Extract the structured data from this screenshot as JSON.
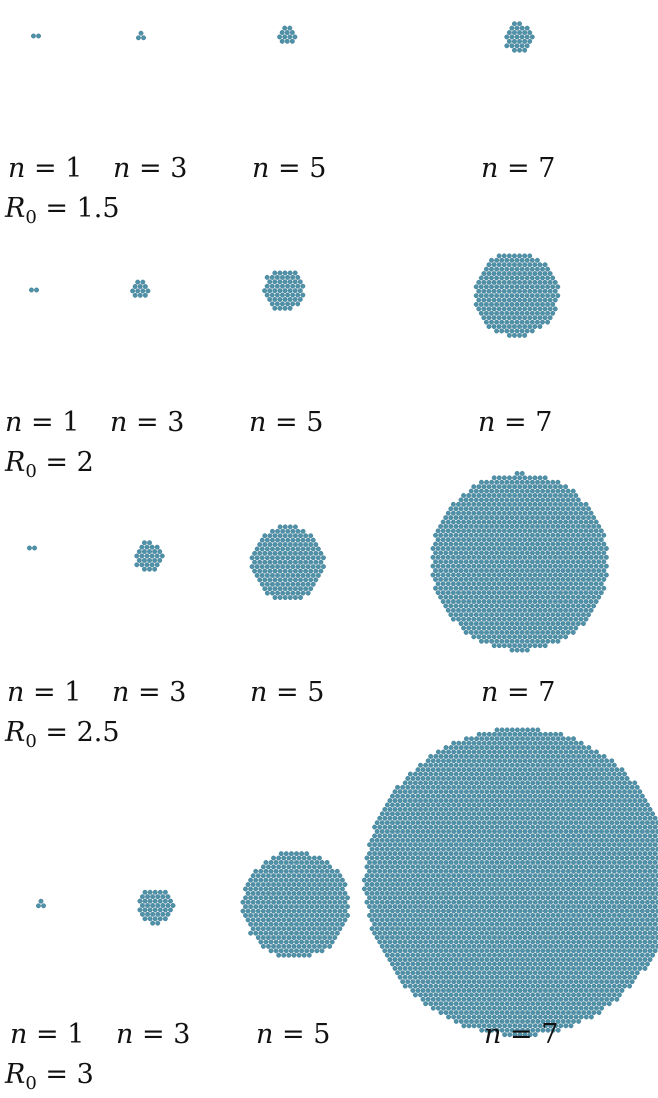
{
  "figure": {
    "dot_color": "#4f91a8",
    "dot_stroke": "#3f7d93",
    "rows": [
      {
        "r0_symbol": "R",
        "r0_subscript": "0",
        "r0_value": "1.5",
        "panels": [
          {
            "n_symbol": "n",
            "n_value": "1",
            "dots": 2
          },
          {
            "n_symbol": "n",
            "n_value": "3",
            "dots": 3
          },
          {
            "n_symbol": "n",
            "n_value": "5",
            "dots": 12
          },
          {
            "n_symbol": "n",
            "n_value": "7",
            "dots": 30
          }
        ]
      },
      {
        "r0_symbol": "R",
        "r0_subscript": "0",
        "r0_value": "2",
        "panels": [
          {
            "n_symbol": "n",
            "n_value": "1",
            "dots": 2
          },
          {
            "n_symbol": "n",
            "n_value": "3",
            "dots": 12
          },
          {
            "n_symbol": "n",
            "n_value": "5",
            "dots": 60
          },
          {
            "n_symbol": "n",
            "n_value": "7",
            "dots": 250
          }
        ]
      },
      {
        "r0_symbol": "R",
        "r0_subscript": "0",
        "r0_value": "2.5",
        "panels": [
          {
            "n_symbol": "n",
            "n_value": "1",
            "dots": 2
          },
          {
            "n_symbol": "n",
            "n_value": "3",
            "dots": 30
          },
          {
            "n_symbol": "n",
            "n_value": "5",
            "dots": 190
          },
          {
            "n_symbol": "n",
            "n_value": "7",
            "dots": 1100
          }
        ]
      },
      {
        "r0_symbol": "R",
        "r0_subscript": "0",
        "r0_value": "3",
        "panels": [
          {
            "n_symbol": "n",
            "n_value": "1",
            "dots": 3
          },
          {
            "n_symbol": "n",
            "n_value": "3",
            "dots": 45
          },
          {
            "n_symbol": "n",
            "n_value": "5",
            "dots": 400
          },
          {
            "n_symbol": "n",
            "n_value": "7",
            "dots": 3300
          }
        ]
      }
    ]
  }
}
